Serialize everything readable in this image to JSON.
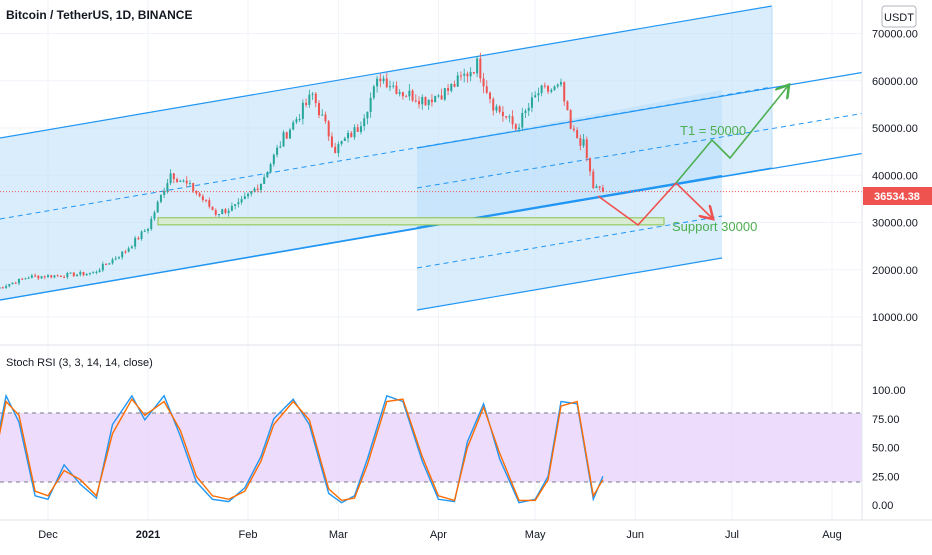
{
  "header": {
    "symbol_title": "Bitcoin / TetherUS, 1D, BINANCE",
    "currency_badge": "USDT"
  },
  "colors": {
    "channel_fill": "#bbdefb",
    "channel_line": "#2196f3",
    "candle_up": "#26a69a",
    "candle_down": "#ef5350",
    "support_fill": "#d8ecd3",
    "support_line": "#8bc34a",
    "target_arrow": "#4caf50",
    "down_arrow": "#ef5350",
    "price_line": "#ef5350",
    "rsi_band": "#e9d3fb",
    "rsi_k": "#2196f3",
    "rsi_d": "#ff6d00"
  },
  "annotations": {
    "target": "T1 = 50000",
    "support": "Support 30000"
  },
  "chart_data": [
    {
      "type": "candlestick",
      "symbol": "BTC/USDT",
      "interval": "1D",
      "exchange": "BINANCE",
      "last_price_label": "36534.38",
      "ylim": [
        5000,
        75000
      ],
      "y_tick_labels": [
        "70000.00",
        "60000.00",
        "50000.00",
        "40000.00",
        "30000.00",
        "20000.00",
        "10000.00"
      ],
      "y_tick_values": [
        70000,
        60000,
        50000,
        40000,
        30000,
        20000,
        10000
      ],
      "x_tick_labels": [
        "Dec",
        "2021",
        "Feb",
        "Mar",
        "Apr",
        "May",
        "Jun",
        "Jul",
        "Aug"
      ],
      "x_tick_dates": [
        "2020-12-01",
        "2021-01-01",
        "2021-02-01",
        "2021-03-01",
        "2021-04-01",
        "2021-05-01",
        "2021-06-01",
        "2021-07-01",
        "2021-08-01"
      ],
      "x_range": [
        "2020-11-13",
        "2021-08-21"
      ],
      "close_series": {
        "dates": [
          "2020-11-15",
          "2020-11-25",
          "2020-12-05",
          "2020-12-15",
          "2020-12-25",
          "2021-01-01",
          "2021-01-08",
          "2021-01-15",
          "2021-01-22",
          "2021-01-29",
          "2021-02-05",
          "2021-02-12",
          "2021-02-21",
          "2021-02-28",
          "2021-03-07",
          "2021-03-14",
          "2021-03-21",
          "2021-03-28",
          "2021-04-04",
          "2021-04-13",
          "2021-04-18",
          "2021-04-25",
          "2021-05-02",
          "2021-05-09",
          "2021-05-12",
          "2021-05-16",
          "2021-05-19",
          "2021-05-22"
        ],
        "close": [
          16000,
          18500,
          18800,
          19300,
          24000,
          29000,
          40500,
          37000,
          32000,
          33500,
          38500,
          48000,
          57000,
          45500,
          50000,
          61000,
          57500,
          56000,
          58000,
          63500,
          55000,
          50000,
          57500,
          58500,
          49500,
          46500,
          37500,
          36534
        ]
      }
    },
    {
      "type": "line",
      "title": "Stoch RSI (3, 3, 14, 14, close)",
      "ylim": [
        -10,
        105
      ],
      "y_tick_labels": [
        "100.00",
        "75.00",
        "50.00",
        "25.00",
        "0.00"
      ],
      "y_tick_values": [
        100,
        75,
        50,
        25,
        0
      ],
      "band": [
        20,
        80
      ],
      "x": [
        "2020-11-13",
        "2020-11-18",
        "2020-11-22",
        "2020-11-27",
        "2020-12-01",
        "2020-12-06",
        "2020-12-11",
        "2020-12-16",
        "2020-12-21",
        "2020-12-27",
        "2020-12-31",
        "2021-01-06",
        "2021-01-11",
        "2021-01-16",
        "2021-01-21",
        "2021-01-26",
        "2021-01-31",
        "2021-02-05",
        "2021-02-09",
        "2021-02-15",
        "2021-02-20",
        "2021-02-26",
        "2021-03-02",
        "2021-03-06",
        "2021-03-10",
        "2021-03-16",
        "2021-03-21",
        "2021-03-27",
        "2021-04-01",
        "2021-04-06",
        "2021-04-10",
        "2021-04-15",
        "2021-04-20",
        "2021-04-26",
        "2021-05-01",
        "2021-05-05",
        "2021-05-09",
        "2021-05-14",
        "2021-05-19",
        "2021-05-22"
      ],
      "series": [
        {
          "values": [
            25,
            95,
            72,
            8,
            5,
            35,
            18,
            6,
            70,
            95,
            74,
            95,
            60,
            20,
            5,
            3,
            15,
            42,
            75,
            92,
            70,
            10,
            2,
            8,
            40,
            95,
            90,
            38,
            5,
            3,
            55,
            88,
            40,
            2,
            5,
            25,
            90,
            88,
            5,
            25
          ]
        },
        {
          "values": [
            20,
            90,
            78,
            12,
            8,
            30,
            22,
            8,
            62,
            92,
            78,
            90,
            65,
            25,
            8,
            5,
            12,
            38,
            70,
            90,
            74,
            14,
            4,
            6,
            35,
            90,
            92,
            42,
            8,
            4,
            50,
            85,
            45,
            4,
            4,
            22,
            86,
            90,
            8,
            22
          ]
        }
      ]
    }
  ]
}
